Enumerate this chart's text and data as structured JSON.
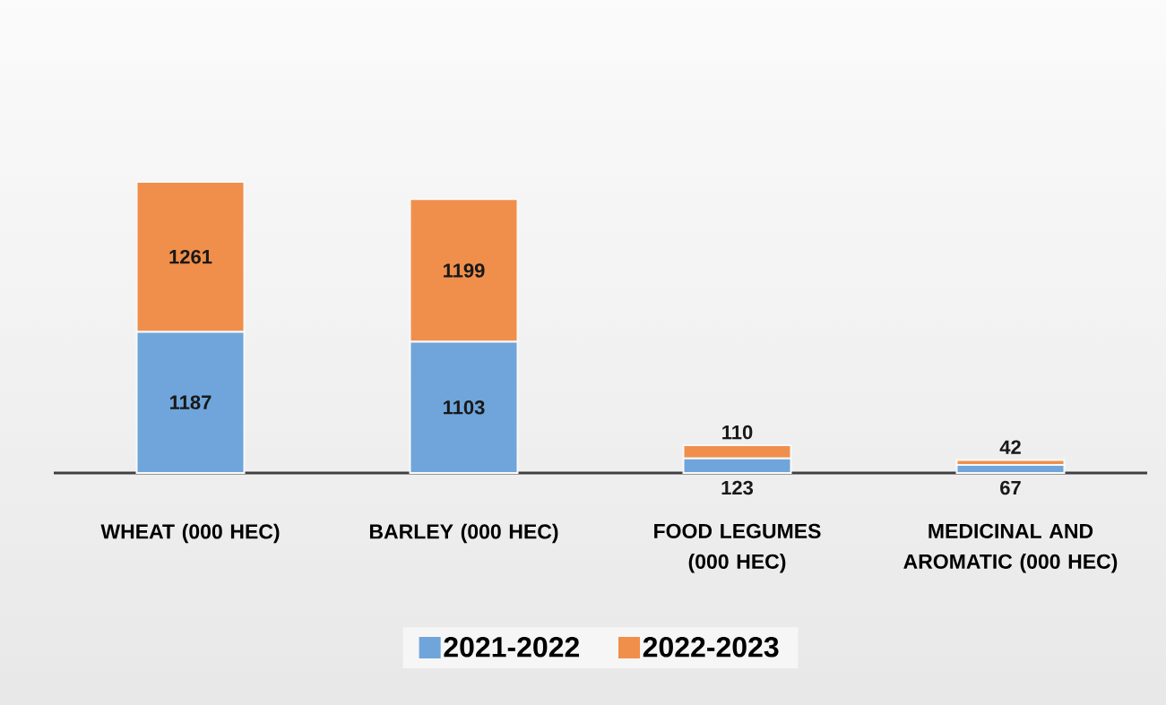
{
  "chart_data": {
    "type": "bar",
    "stacked": true,
    "categories": [
      "WHEAT (000 HEC)",
      "BARLEY (000 HEC)",
      "FOOD LEGUMES (000 HEC)",
      "MEDICINAL AND AROMATIC (000 HEC)"
    ],
    "series": [
      {
        "name": "2021-2022",
        "color": "#6fa5db",
        "values": [
          1187,
          1103,
          123,
          67
        ]
      },
      {
        "name": "2022-2023",
        "color": "#f08f4b",
        "values": [
          1261,
          1199,
          110,
          42
        ]
      }
    ],
    "data_labels": true,
    "legend": "bottom"
  }
}
